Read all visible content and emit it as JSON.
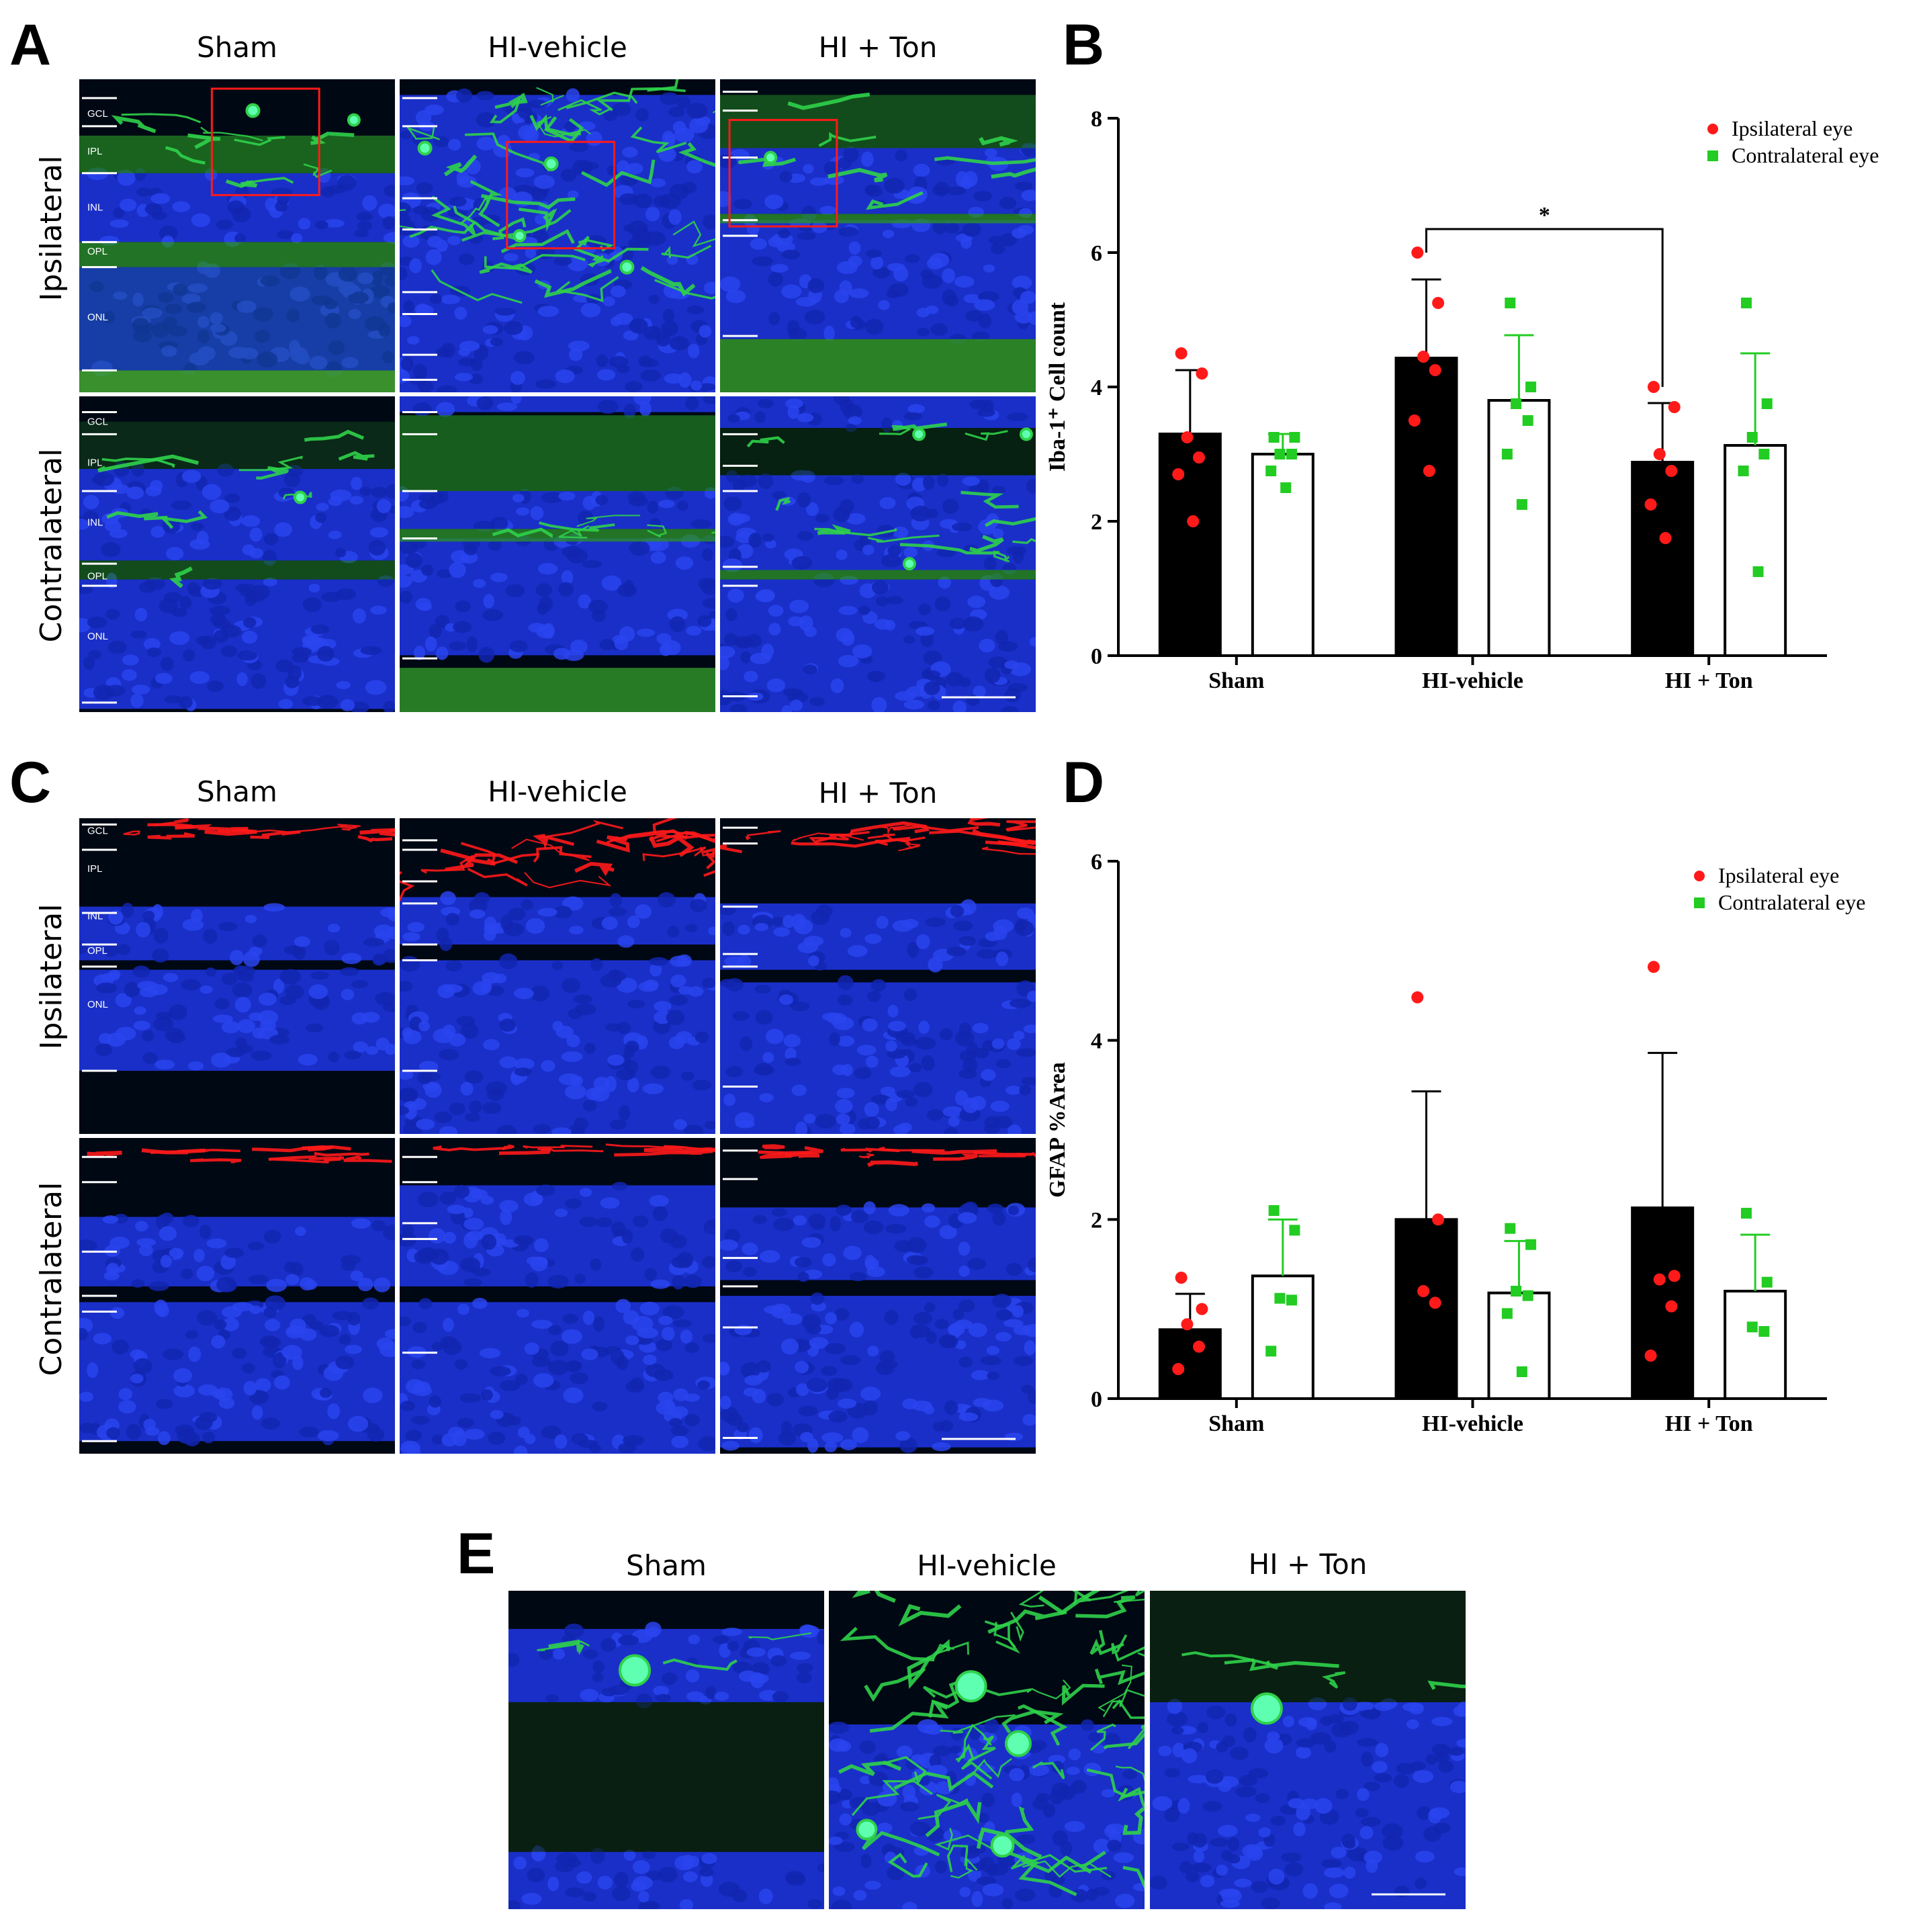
{
  "panels": {
    "A": {
      "letter": "A",
      "columns": [
        "Sham",
        "HI-vehicle",
        "HI + Ton"
      ],
      "rows": [
        "Ipsilateral",
        "Contralateral"
      ],
      "layer_labels": [
        "GCL",
        "IPL",
        "INL",
        "OPL",
        "ONL"
      ],
      "stain_color": "#2fd14a",
      "nucleus_color": "#1030e0",
      "box_color": "#ff1a1a"
    },
    "B": {
      "letter": "B"
    },
    "C": {
      "letter": "C",
      "columns": [
        "Sham",
        "HI-vehicle",
        "HI + Ton"
      ],
      "rows": [
        "Ipsilateral",
        "Contralateral"
      ],
      "layer_labels": [
        "GCL",
        "IPL",
        "INL",
        "OPL",
        "ONL"
      ],
      "stain_color": "#ff1a1a",
      "nucleus_color": "#1030e0"
    },
    "D": {
      "letter": "D"
    },
    "E": {
      "letter": "E",
      "columns": [
        "Sham",
        "HI-vehicle",
        "HI + Ton"
      ]
    }
  },
  "chart_data": [
    {
      "panel": "B",
      "type": "bar",
      "categories": [
        "Sham",
        "HI-vehicle",
        "HI + Ton"
      ],
      "ylabel": "Iba-1⁺ Cell count",
      "ylim": [
        0,
        8
      ],
      "yticks": [
        0,
        2,
        4,
        6,
        8
      ],
      "legend_position": "top-right",
      "series": [
        {
          "name": "Ipsilateral eye",
          "color": "#ff1a1a",
          "bar_fill": "#000000",
          "marker": "circle",
          "values": [
            3.3,
            4.43,
            2.88
          ],
          "sd": [
            0.95,
            1.17,
            0.88
          ],
          "points": [
            [
              4.5,
              4.2,
              3.25,
              2.95,
              2.7,
              2.0
            ],
            [
              6.0,
              5.25,
              4.45,
              4.25,
              3.5,
              2.75
            ],
            [
              4.0,
              3.7,
              3.0,
              2.75,
              2.25,
              1.75
            ]
          ]
        },
        {
          "name": "Contralateral eye",
          "color": "#22cc22",
          "bar_fill": "#ffffff",
          "marker": "square",
          "values": [
            3.0,
            3.8,
            3.13
          ],
          "sd": [
            0.3,
            0.97,
            1.37
          ],
          "points": [
            [
              3.25,
              3.25,
              3.0,
              3.0,
              2.75,
              2.5
            ],
            [
              5.25,
              4.0,
              3.75,
              3.5,
              3.0,
              2.25
            ],
            [
              5.25,
              3.75,
              3.25,
              3.0,
              2.75,
              1.25
            ]
          ]
        }
      ],
      "annotation": {
        "text": "*",
        "from": "HI-vehicle",
        "to": "HI + Ton"
      }
    },
    {
      "panel": "D",
      "type": "bar",
      "categories": [
        "Sham",
        "HI-vehicle",
        "HI + Ton"
      ],
      "ylabel": "GFAP %Area",
      "ylim": [
        0,
        6
      ],
      "yticks": [
        0,
        2,
        4,
        6
      ],
      "legend_position": "top-right",
      "series": [
        {
          "name": "Ipsilateral eye",
          "color": "#ff1a1a",
          "bar_fill": "#000000",
          "marker": "circle",
          "values": [
            0.77,
            2.0,
            2.13
          ],
          "sd": [
            0.4,
            1.43,
            1.73
          ],
          "points": [
            [
              1.35,
              1.0,
              0.83,
              0.58,
              0.33
            ],
            [
              4.48,
              2.0,
              1.2,
              1.07
            ],
            [
              4.82,
              1.37,
              1.33,
              1.03,
              0.48
            ]
          ]
        },
        {
          "name": "Contralateral eye",
          "color": "#22cc22",
          "bar_fill": "#ffffff",
          "marker": "square",
          "values": [
            1.37,
            1.18,
            1.2
          ],
          "sd": [
            0.63,
            0.58,
            0.63
          ],
          "points": [
            [
              2.1,
              1.88,
              1.12,
              1.1,
              0.53
            ],
            [
              1.9,
              1.72,
              1.2,
              1.15,
              0.95,
              0.3
            ],
            [
              2.07,
              1.3,
              0.8,
              0.75
            ]
          ]
        }
      ]
    }
  ]
}
